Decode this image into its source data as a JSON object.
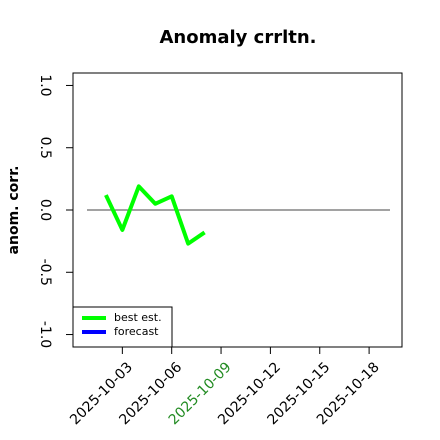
{
  "chart_data": {
    "type": "line",
    "title": "Anomaly crrltn.",
    "y_label": "anom. corr.",
    "x": [
      "2025-10-02",
      "2025-10-03",
      "2025-10-04",
      "2025-10-05",
      "2025-10-06",
      "2025-10-07",
      "2025-10-08"
    ],
    "series": [
      {
        "name": "best est.",
        "color": "#00ff00",
        "values": [
          0.12,
          -0.16,
          0.19,
          0.05,
          0.11,
          -0.27,
          -0.18
        ]
      },
      {
        "name": "forecast",
        "color": "#0000ff",
        "values": [
          null,
          null,
          null,
          null,
          null,
          null,
          null
        ]
      }
    ],
    "xlim": [
      "2025-09-30",
      "2025-10-20"
    ],
    "xticks": [
      "2025-10-03",
      "2025-10-06",
      "2025-10-09",
      "2025-10-12",
      "2025-10-15",
      "2025-10-18"
    ],
    "xtick_colors": [
      "#000000",
      "#000000",
      "#228b22",
      "#000000",
      "#000000",
      "#000000"
    ],
    "ylim": [
      -1.1,
      1.1
    ],
    "yticks": [
      {
        "value": -1,
        "label": "-1.0"
      },
      {
        "value": -0.5,
        "label": "-0.5"
      },
      {
        "value": 0,
        "label": "0.0"
      },
      {
        "value": 0.5,
        "label": "0.5"
      },
      {
        "value": 1,
        "label": "1.0"
      }
    ],
    "reference_line": 0,
    "legend": "bottom-left"
  }
}
